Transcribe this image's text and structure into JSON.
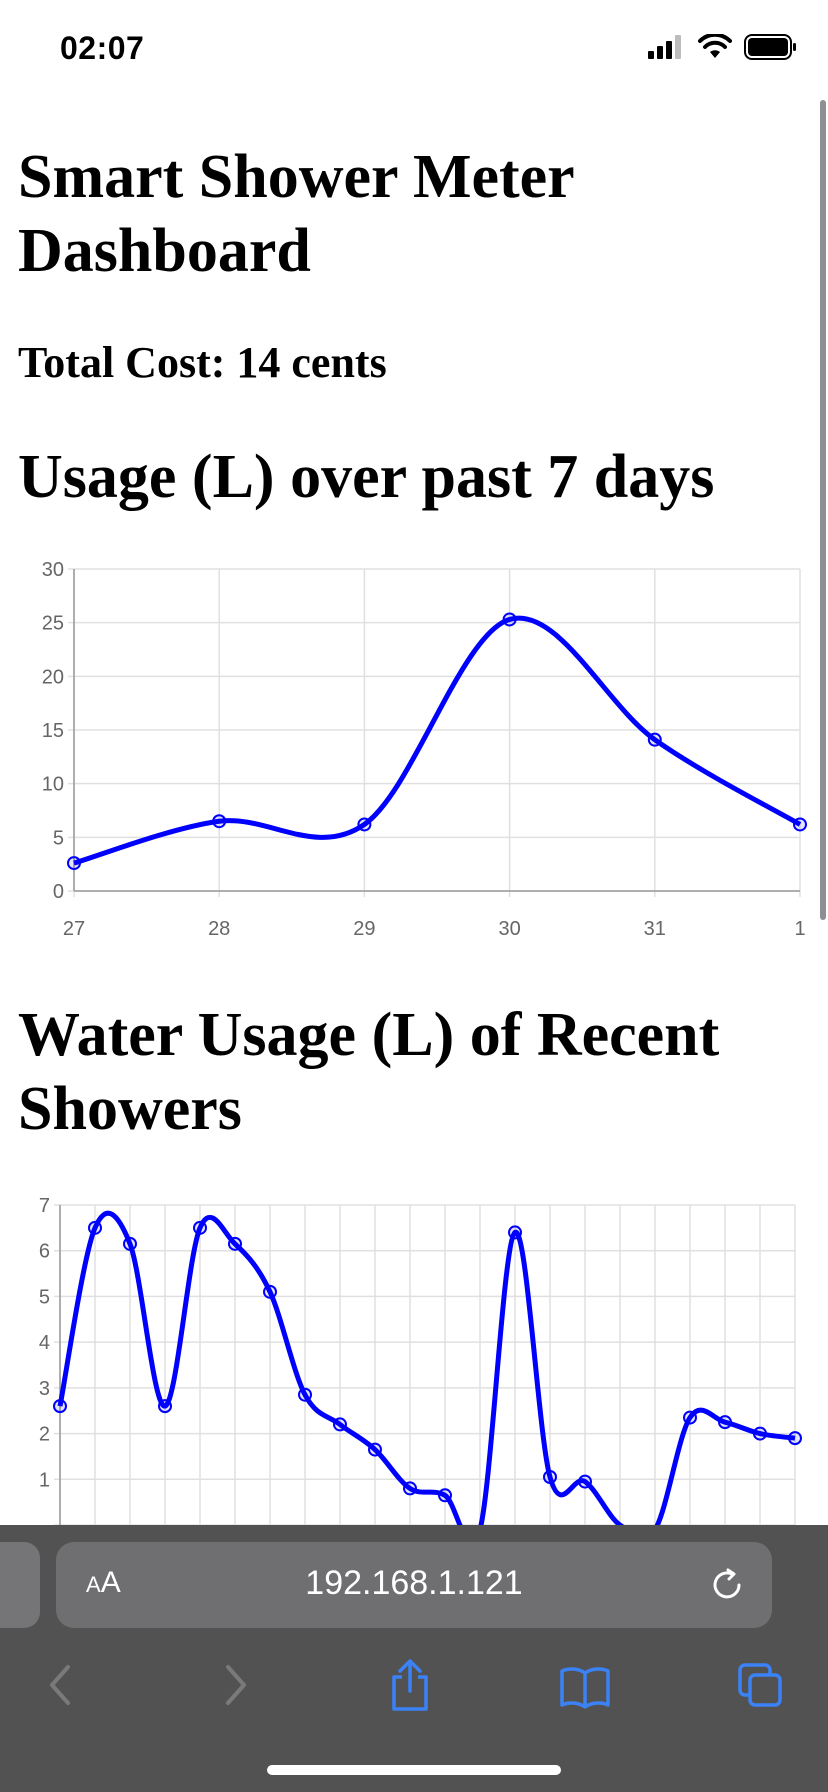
{
  "status": {
    "time": "02:07"
  },
  "page": {
    "title": "Smart Shower Meter Dashboard",
    "total_cost": "Total Cost: 14 cents",
    "section1_title": "Usage (L) over past 7 days",
    "section2_title": "Water Usage (L) of Recent Showers"
  },
  "browser": {
    "url": "192.168.1.121",
    "text_size_label_small": "A",
    "text_size_label_big": "A"
  },
  "colors": {
    "line": "#0000ff",
    "grid": "#e0e0e0",
    "browser_bar": "#525252"
  },
  "icons": [
    "cellular-signal-icon",
    "wifi-icon",
    "battery-icon",
    "reload-icon",
    "back-icon",
    "forward-icon",
    "share-icon",
    "bookmarks-icon",
    "tabs-icon"
  ],
  "chart_data": [
    {
      "type": "line",
      "title": "",
      "x": [
        "27",
        "28",
        "29",
        "30",
        "31",
        "1"
      ],
      "series": [
        {
          "values": [
            2.6,
            6.5,
            6.2,
            25.3,
            14.1,
            6.2
          ]
        }
      ],
      "ylim": [
        0,
        30
      ],
      "yticks": [
        "0",
        "5",
        "10",
        "15",
        "20",
        "25",
        "30"
      ],
      "grid": true,
      "smooth": true
    },
    {
      "type": "line",
      "title": "",
      "x_count": 22,
      "series": [
        {
          "values": [
            2.6,
            6.5,
            6.15,
            2.6,
            6.5,
            6.15,
            5.1,
            2.85,
            2.2,
            1.65,
            0.8,
            0.65,
            -0.1,
            6.4,
            1.05,
            0.95,
            0.0,
            -0.1,
            2.35,
            2.25,
            2.0,
            1.9
          ]
        }
      ],
      "ylim": [
        0,
        7
      ],
      "yticks": [
        "1",
        "2",
        "3",
        "4",
        "5",
        "6",
        "7"
      ],
      "grid": true,
      "smooth": true
    }
  ]
}
